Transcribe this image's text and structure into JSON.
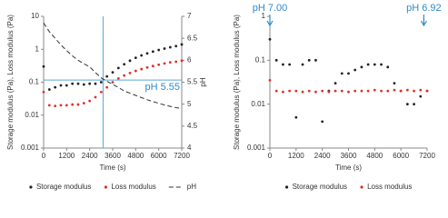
{
  "chart_data": [
    {
      "type": "scatter",
      "log_y": true,
      "legend": "bottom",
      "xlabel": "Time (s)",
      "ylabel": "Storage modulus (Pa), Loss modulus (Pa)",
      "y2label": "pH",
      "x": [
        0,
        300,
        600,
        900,
        1200,
        1500,
        1800,
        2100,
        2400,
        2700,
        3000,
        3300,
        3600,
        3900,
        4200,
        4500,
        4800,
        5100,
        5400,
        5700,
        6000,
        6300,
        6600,
        6900,
        7200
      ],
      "series": [
        {
          "name": "Storage modulus",
          "color": "#222222",
          "style": "markers",
          "values": [
            0.3,
            0.06,
            0.07,
            0.08,
            0.08,
            0.09,
            0.09,
            0.085,
            0.09,
            0.09,
            0.1,
            0.15,
            0.2,
            0.27,
            0.35,
            0.45,
            0.55,
            0.65,
            0.75,
            0.85,
            0.95,
            1.05,
            1.15,
            1.25,
            1.4
          ]
        },
        {
          "name": "Loss modulus",
          "color": "#e0302a",
          "style": "markers",
          "values": [
            0.05,
            0.02,
            0.019,
            0.02,
            0.02,
            0.021,
            0.021,
            0.023,
            0.027,
            0.035,
            0.05,
            0.07,
            0.1,
            0.13,
            0.16,
            0.19,
            0.22,
            0.25,
            0.28,
            0.31,
            0.34,
            0.37,
            0.4,
            0.42,
            0.45
          ]
        },
        {
          "name": "pH",
          "color": "#333333",
          "style": "dashed",
          "axis": "y2",
          "values": [
            6.85,
            6.65,
            6.5,
            6.35,
            6.22,
            6.1,
            6.0,
            5.92,
            5.85,
            5.72,
            5.6,
            5.52,
            5.45,
            5.38,
            5.3,
            5.25,
            5.2,
            5.15,
            5.1,
            5.06,
            5.02,
            4.98,
            4.95,
            4.92,
            4.9
          ]
        }
      ],
      "xlim": [
        0,
        7200
      ],
      "xticks": [
        0,
        1200,
        2400,
        3600,
        4800,
        6000,
        7200
      ],
      "ylim": [
        0.001,
        10
      ],
      "yticks": [
        0.001,
        0.01,
        0.1,
        1,
        10
      ],
      "y2lim": [
        4,
        7
      ],
      "y2ticks": [
        4,
        4.5,
        5,
        5.5,
        6,
        6.5,
        7
      ],
      "reference_lines": [
        {
          "axis": "x",
          "value": 3100,
          "color": "#5aa8d8"
        },
        {
          "axis": "y2",
          "value": 5.55,
          "color": "#5aa8d8"
        }
      ],
      "annotations": [
        {
          "text": "pH 5.55",
          "y2": 5.55
        }
      ]
    },
    {
      "type": "scatter",
      "log_y": true,
      "legend": "bottom",
      "xlabel": "Time (s)",
      "ylabel": "Storage modulus (Pa), Loss modulus (Pa)",
      "x": [
        0,
        300,
        600,
        900,
        1200,
        1500,
        1800,
        2100,
        2400,
        2700,
        3000,
        3300,
        3600,
        3900,
        4200,
        4500,
        4800,
        5100,
        5400,
        5700,
        6000,
        6300,
        6600,
        6900,
        7200
      ],
      "series": [
        {
          "name": "Storage modulus",
          "color": "#222222",
          "style": "markers",
          "values": [
            0.3,
            0.1,
            0.08,
            0.08,
            0.005,
            0.08,
            0.1,
            0.1,
            0.004,
            0.02,
            0.03,
            0.05,
            0.05,
            0.06,
            0.07,
            0.08,
            0.08,
            0.08,
            0.07,
            0.03,
            0.02,
            0.01,
            0.01,
            0.015,
            0.02
          ]
        },
        {
          "name": "Loss modulus",
          "color": "#e0302a",
          "style": "markers",
          "values": [
            0.035,
            0.02,
            0.019,
            0.02,
            0.02,
            0.019,
            0.02,
            0.019,
            0.02,
            0.019,
            0.02,
            0.02,
            0.019,
            0.02,
            0.02,
            0.02,
            0.021,
            0.02,
            0.02,
            0.021,
            0.02,
            0.021,
            0.02,
            0.021,
            0.02
          ]
        }
      ],
      "xlim": [
        0,
        7200
      ],
      "xticks": [
        0,
        1200,
        2400,
        3600,
        4800,
        6000,
        7200
      ],
      "ylim": [
        0.001,
        1
      ],
      "yticks": [
        0.001,
        0.01,
        0.1,
        1
      ],
      "annotations": [
        {
          "text": "pH 7.00",
          "x": 0,
          "color": "#2e8bc9"
        },
        {
          "text": "pH 6.92",
          "x": 7050,
          "color": "#2e8bc9"
        }
      ]
    }
  ]
}
